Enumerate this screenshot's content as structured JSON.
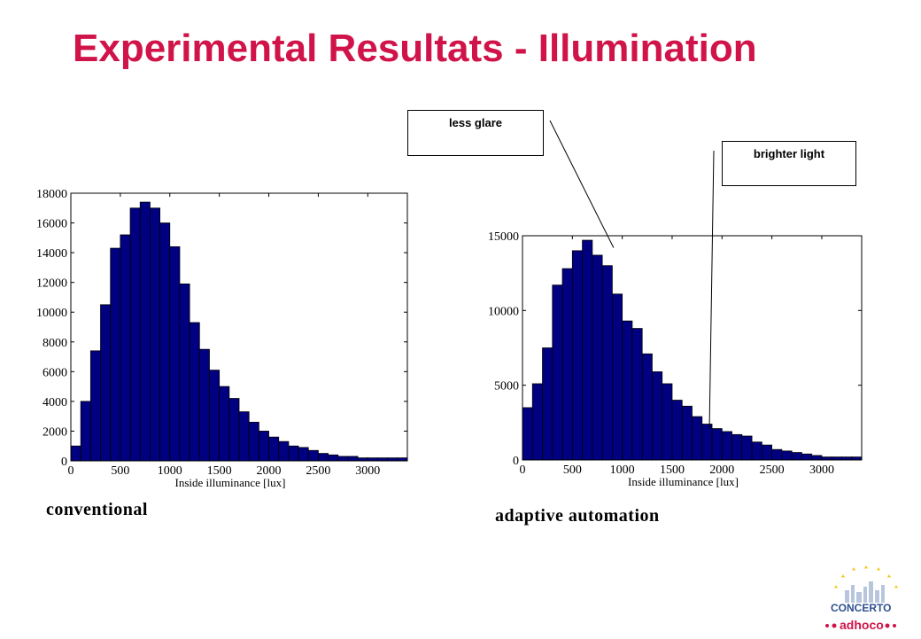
{
  "title": "Experimental Resultats - Illumination",
  "chart_data": [
    {
      "type": "bar",
      "caption": "conventional",
      "xlabel": "Inside illuminance [lux]",
      "xlim": [
        0,
        3400
      ],
      "ylim": [
        0,
        18000
      ],
      "xticks": [
        0,
        500,
        1000,
        1500,
        2000,
        2500,
        3000
      ],
      "yticks": [
        0,
        2000,
        4000,
        6000,
        8000,
        10000,
        12000,
        14000,
        16000,
        18000
      ],
      "bin_width": 100,
      "bin_starts": [
        0,
        100,
        200,
        300,
        400,
        500,
        600,
        700,
        800,
        900,
        1000,
        1100,
        1200,
        1300,
        1400,
        1500,
        1600,
        1700,
        1800,
        1900,
        2000,
        2100,
        2200,
        2300,
        2400,
        2500,
        2600,
        2700,
        2800,
        2900,
        3000,
        3100,
        3200,
        3300
      ],
      "values": [
        1000,
        4000,
        7400,
        10500,
        14300,
        15200,
        17000,
        17400,
        17000,
        16000,
        14400,
        11900,
        9300,
        7500,
        6100,
        5000,
        4200,
        3300,
        2600,
        2000,
        1600,
        1300,
        1000,
        900,
        700,
        500,
        400,
        300,
        300,
        200,
        200,
        200,
        200,
        200
      ],
      "grid": false
    },
    {
      "type": "bar",
      "caption": "adaptive automation",
      "xlabel": "Inside illuminance [lux]",
      "xlim": [
        0,
        3400
      ],
      "ylim": [
        0,
        15000
      ],
      "xticks": [
        0,
        500,
        1000,
        1500,
        2000,
        2500,
        3000
      ],
      "yticks": [
        0,
        5000,
        10000,
        15000
      ],
      "bin_width": 100,
      "bin_starts": [
        0,
        100,
        200,
        300,
        400,
        500,
        600,
        700,
        800,
        900,
        1000,
        1100,
        1200,
        1300,
        1400,
        1500,
        1600,
        1700,
        1800,
        1900,
        2000,
        2100,
        2200,
        2300,
        2400,
        2500,
        2600,
        2700,
        2800,
        2900,
        3000,
        3100,
        3200,
        3300
      ],
      "values": [
        3500,
        5100,
        7500,
        11700,
        12800,
        14000,
        14700,
        13700,
        13000,
        11100,
        9300,
        8800,
        7100,
        5900,
        5100,
        4000,
        3600,
        2900,
        2400,
        2100,
        1900,
        1700,
        1600,
        1200,
        1000,
        700,
        600,
        500,
        400,
        300,
        200,
        200,
        200,
        200
      ],
      "grid": false,
      "annotations": [
        {
          "text": "less glare",
          "x": 620,
          "y": 14200
        },
        {
          "text": "brighter light",
          "x": 1900,
          "y": 1300
        }
      ]
    }
  ],
  "logo": {
    "top_text": "CONCERTO",
    "bottom_text": "adhoco"
  },
  "colors": {
    "title": "#d0144a",
    "bar_fill": "#000080",
    "bar_edge": "#000000"
  }
}
